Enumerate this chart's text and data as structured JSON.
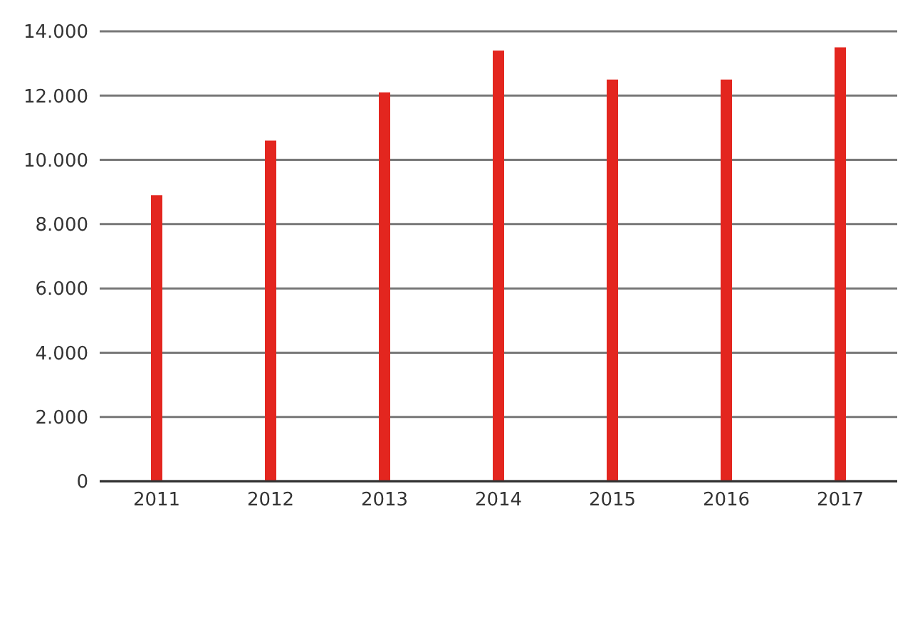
{
  "chart_data": {
    "type": "bar",
    "categories": [
      "2011",
      "2012",
      "2013",
      "2014",
      "2015",
      "2016",
      "2017"
    ],
    "values": [
      8900,
      10600,
      12100,
      13400,
      12500,
      12500,
      13500
    ],
    "color": "#e3261f",
    "ylim": [
      0,
      14000
    ],
    "yticks": [
      0,
      {
        "value": 2000,
        "label": "2.000"
      },
      {
        "value": 4000,
        "label": "4.000"
      },
      {
        "value": 6000,
        "label": "6.000"
      },
      {
        "value": 8000,
        "label": "8.000"
      },
      {
        "value": 10000,
        "label": "10.000"
      },
      {
        "value": 12000,
        "label": "12.000"
      },
      {
        "value": 14000,
        "label": "14.000"
      }
    ],
    "grid": "y"
  }
}
